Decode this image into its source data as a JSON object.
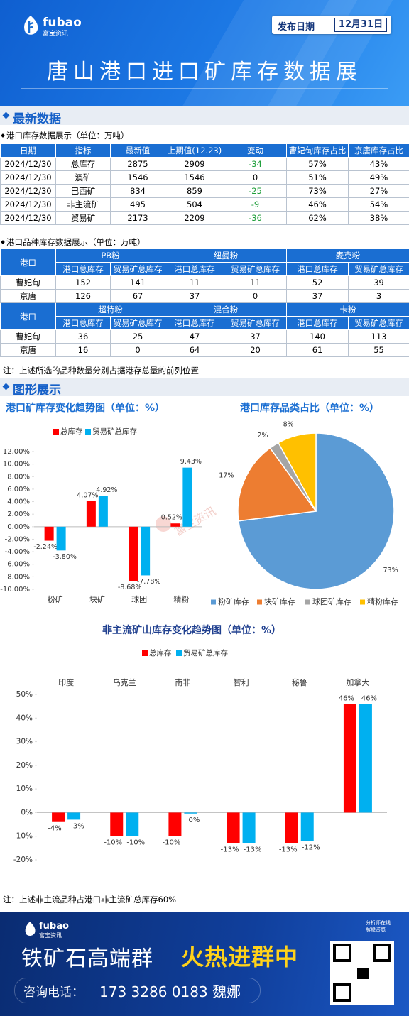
{
  "header": {
    "brand": "fubao",
    "brand_cn": "富宝资讯",
    "date_label": "发布日期",
    "date": "12月31日",
    "title": "唐山港口进口矿库存数据展"
  },
  "sections": [
    "最新数据",
    "图形展示"
  ],
  "table1": {
    "caption": "港口库存数据展示（单位：万吨）",
    "headers": [
      "日期",
      "指标",
      "最新值",
      "上期值(12.23)",
      "变动",
      "曹妃甸库存占比",
      "京唐库存占比"
    ],
    "rows": [
      [
        "2024/12/30",
        "总库存",
        "2875",
        "2909",
        "-34",
        "57%",
        "43%"
      ],
      [
        "2024/12/30",
        "澳矿",
        "1546",
        "1546",
        "0",
        "51%",
        "49%"
      ],
      [
        "2024/12/30",
        "巴西矿",
        "834",
        "859",
        "-25",
        "73%",
        "27%"
      ],
      [
        "2024/12/30",
        "非主流矿",
        "495",
        "504",
        "-9",
        "46%",
        "54%"
      ],
      [
        "2024/12/30",
        "贸易矿",
        "2173",
        "2209",
        "-36",
        "62%",
        "38%"
      ]
    ]
  },
  "table2": {
    "caption": "港口品种库存数据展示（单位：万吨）",
    "port_header": "港口",
    "sub_headers": [
      "港口总库存",
      "贸易矿总库存"
    ],
    "blocks": [
      {
        "groups": [
          "PB粉",
          "纽曼粉",
          "麦克粉"
        ],
        "rows": [
          {
            "port": "曹妃甸",
            "values": [
              152,
              141,
              11,
              11,
              52,
              39
            ]
          },
          {
            "port": "京唐",
            "values": [
              126,
              67,
              37,
              0,
              37,
              3
            ]
          }
        ]
      },
      {
        "groups": [
          "超特粉",
          "混合粉",
          "卡粉"
        ],
        "rows": [
          {
            "port": "曹妃甸",
            "values": [
              36,
              25,
              47,
              37,
              140,
              113
            ]
          },
          {
            "port": "京唐",
            "values": [
              16,
              0,
              64,
              20,
              61,
              55
            ]
          }
        ]
      }
    ]
  },
  "note1": "注：上述所选的品种数量分别占据港存总量的前列位置",
  "watermark": "富宝资讯",
  "chart_data": [
    {
      "type": "bar",
      "title": "港口矿库存变化趋势图（单位：%）",
      "categories": [
        "粉矿",
        "块矿",
        "球团",
        "精粉"
      ],
      "series": [
        {
          "name": "总库存",
          "color": "#ff0000",
          "values": [
            -2.24,
            4.07,
            -8.68,
            0.52
          ],
          "value_labels": [
            "-2.24%",
            "4.07%",
            "-8.68%",
            "0.52%"
          ]
        },
        {
          "name": "贸易矿总库存",
          "color": "#00b0f0",
          "values": [
            -3.8,
            4.92,
            -7.78,
            9.43
          ],
          "value_labels": [
            "-3.80%",
            "4.92%",
            "-7.78%",
            "9.43%"
          ]
        }
      ],
      "ylim": [
        -10,
        12
      ],
      "yticks": [
        {
          "value": -10,
          "label": "-10.00%"
        },
        {
          "value": -8,
          "label": "-8.00%"
        },
        {
          "value": -6,
          "label": "-6.00%"
        },
        {
          "value": -4,
          "label": "-4.00%"
        },
        {
          "value": -2,
          "label": "-2.00%"
        },
        {
          "value": 0,
          "label": "0.00%"
        },
        {
          "value": 2,
          "label": "2.00%"
        },
        {
          "value": 4,
          "label": "4.00%"
        },
        {
          "value": 6,
          "label": "6.00%"
        },
        {
          "value": 8,
          "label": "8.00%"
        },
        {
          "value": 10,
          "label": "10.00%"
        },
        {
          "value": 12,
          "label": "12.00%"
        }
      ],
      "legend": "top",
      "x_labels_position": "bottom",
      "grid": false
    },
    {
      "type": "pie",
      "title": "港口库存品类占比（单位：%）",
      "categories": [
        "粉矿库存",
        "块矿库存",
        "球团矿库存",
        "精粉库存"
      ],
      "values": [
        73,
        17,
        2,
        8
      ],
      "value_labels": [
        "73%",
        "17%",
        "2%",
        "8%"
      ],
      "colors": [
        "#5b9bd5",
        "#ed7d31",
        "#a5a5a5",
        "#ffc000"
      ],
      "legend": "bottom"
    },
    {
      "type": "bar",
      "title": "非主流矿山库存变化趋势图（单位：%）",
      "categories": [
        "印度",
        "乌克兰",
        "南非",
        "智利",
        "秘鲁",
        "加拿大"
      ],
      "series": [
        {
          "name": "总库存",
          "color": "#ff0000",
          "values": [
            -4,
            -10,
            -10,
            -13,
            -13,
            46
          ],
          "value_labels": [
            "-4%",
            "-10%",
            "-10%",
            "-13%",
            "-13%",
            "46%"
          ]
        },
        {
          "name": "贸易矿总库存",
          "color": "#00b0f0",
          "values": [
            -3,
            -10,
            -0.4,
            -13,
            -12,
            46
          ],
          "value_labels": [
            "-3%",
            "-10%",
            "0%",
            "-13%",
            "-12%",
            "46%"
          ]
        }
      ],
      "ylim": [
        -20,
        50
      ],
      "yticks": [
        {
          "value": -20,
          "label": "-20%"
        },
        {
          "value": -10,
          "label": "-10%"
        },
        {
          "value": 0,
          "label": "0%"
        },
        {
          "value": 10,
          "label": "10%"
        },
        {
          "value": 20,
          "label": "20%"
        },
        {
          "value": 30,
          "label": "30%"
        },
        {
          "value": 40,
          "label": "40%"
        },
        {
          "value": 50,
          "label": "50%"
        }
      ],
      "legend": "top",
      "x_labels_position": "top",
      "grid": false
    }
  ],
  "note2": "注：上述非主流品种占港口非主流矿总库存60%",
  "footer": {
    "brand": "fubao",
    "brand_cn": "富宝资讯",
    "badge": [
      "分析师在线",
      "解疑答惑"
    ],
    "slogan": "铁矿石高端群",
    "highlight": "火热进群中",
    "phone_label": "咨询电话：",
    "phone": "173 3286 0183 魏娜"
  }
}
